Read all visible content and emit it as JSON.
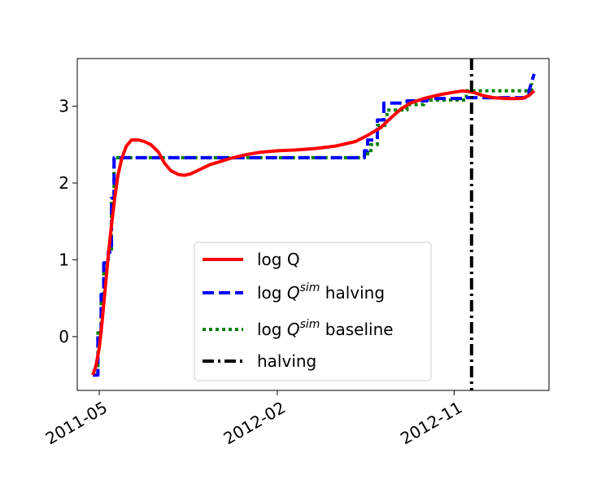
{
  "chart_data": {
    "type": "line",
    "title": "",
    "xlabel": "",
    "ylabel": "",
    "x_range": [
      "2011-03-28",
      "2013-03-28"
    ],
    "ylim": [
      -0.7,
      3.62
    ],
    "x_ticks": [
      {
        "date": "2011-05-01",
        "label": "2011-05"
      },
      {
        "date": "2012-02-01",
        "label": "2012-02"
      },
      {
        "date": "2012-11-01",
        "label": "2012-11"
      }
    ],
    "y_ticks": [
      0,
      1,
      2,
      3
    ],
    "y_tick_labels": [
      "0",
      "1",
      "2",
      "3"
    ],
    "legend": {
      "placement": "lower-center",
      "entries": [
        {
          "label": "log Q",
          "series": "logq"
        },
        {
          "label_prefix": "log ",
          "label_main": "Q",
          "label_sup": "sim",
          "label_suffix": " halving",
          "series": "halving_sim"
        },
        {
          "label_prefix": "log ",
          "label_main": "Q",
          "label_sup": "sim",
          "label_suffix": " baseline",
          "series": "baseline_sim"
        },
        {
          "label": "halving",
          "series": "halving_event"
        }
      ]
    },
    "series": [
      {
        "key": "logq",
        "color": "#ff0000",
        "style": "solid",
        "points": [
          [
            "2011-04-21",
            -0.5
          ],
          [
            "2011-04-26",
            -0.38
          ],
          [
            "2011-05-01",
            -0.15
          ],
          [
            "2011-05-05",
            0.15
          ],
          [
            "2011-05-10",
            0.6
          ],
          [
            "2011-05-15",
            1.05
          ],
          [
            "2011-05-20",
            1.45
          ],
          [
            "2011-05-25",
            1.8
          ],
          [
            "2011-05-30",
            2.1
          ],
          [
            "2011-06-05",
            2.32
          ],
          [
            "2011-06-12",
            2.48
          ],
          [
            "2011-06-20",
            2.56
          ],
          [
            "2011-07-01",
            2.56
          ],
          [
            "2011-07-10",
            2.54
          ],
          [
            "2011-07-20",
            2.5
          ],
          [
            "2011-08-01",
            2.4
          ],
          [
            "2011-08-10",
            2.26
          ],
          [
            "2011-08-20",
            2.16
          ],
          [
            "2011-09-01",
            2.11
          ],
          [
            "2011-09-10",
            2.1
          ],
          [
            "2011-09-20",
            2.12
          ],
          [
            "2011-10-05",
            2.18
          ],
          [
            "2011-10-20",
            2.24
          ],
          [
            "2011-11-05",
            2.28
          ],
          [
            "2011-11-20",
            2.32
          ],
          [
            "2011-12-15",
            2.37
          ],
          [
            "2012-01-05",
            2.4
          ],
          [
            "2012-02-01",
            2.42
          ],
          [
            "2012-03-01",
            2.43
          ],
          [
            "2012-04-01",
            2.45
          ],
          [
            "2012-05-01",
            2.48
          ],
          [
            "2012-06-01",
            2.54
          ],
          [
            "2012-06-20",
            2.62
          ],
          [
            "2012-07-10",
            2.72
          ],
          [
            "2012-07-25",
            2.84
          ],
          [
            "2012-08-10",
            2.96
          ],
          [
            "2012-08-25",
            3.04
          ],
          [
            "2012-09-15",
            3.1
          ],
          [
            "2012-10-10",
            3.15
          ],
          [
            "2012-10-30",
            3.18
          ],
          [
            "2012-11-15",
            3.2
          ],
          [
            "2012-12-01",
            3.18
          ],
          [
            "2012-12-15",
            3.14
          ],
          [
            "2013-01-01",
            3.11
          ],
          [
            "2013-01-20",
            3.1
          ],
          [
            "2013-02-15",
            3.1
          ],
          [
            "2013-02-25",
            3.14
          ],
          [
            "2013-03-05",
            3.2
          ]
        ]
      },
      {
        "key": "halving_sim",
        "color": "#0000ff",
        "style": "dashed",
        "points": [
          [
            "2011-04-21",
            -0.5
          ],
          [
            "2011-04-29",
            -0.5
          ],
          [
            "2011-04-29",
            0.05
          ],
          [
            "2011-05-04",
            0.05
          ],
          [
            "2011-05-04",
            0.55
          ],
          [
            "2011-05-08",
            0.55
          ],
          [
            "2011-05-08",
            0.96
          ],
          [
            "2011-05-15",
            0.96
          ],
          [
            "2011-05-15",
            1.1
          ],
          [
            "2011-05-20",
            1.1
          ],
          [
            "2011-05-20",
            1.8
          ],
          [
            "2011-05-24",
            1.8
          ],
          [
            "2011-05-24",
            2.33
          ],
          [
            "2012-06-15",
            2.33
          ],
          [
            "2012-06-15",
            2.42
          ],
          [
            "2012-06-20",
            2.42
          ],
          [
            "2012-06-20",
            2.56
          ],
          [
            "2012-07-05",
            2.56
          ],
          [
            "2012-07-05",
            2.82
          ],
          [
            "2012-07-15",
            2.82
          ],
          [
            "2012-07-15",
            3.04
          ],
          [
            "2012-08-20",
            3.04
          ],
          [
            "2012-08-20",
            3.07
          ],
          [
            "2012-09-20",
            3.07
          ],
          [
            "2012-09-20",
            3.1
          ],
          [
            "2012-11-15",
            3.1
          ],
          [
            "2012-11-15",
            3.11
          ],
          [
            "2013-02-25",
            3.11
          ],
          [
            "2013-02-25",
            3.2
          ],
          [
            "2013-03-05",
            3.42
          ]
        ]
      },
      {
        "key": "baseline_sim",
        "color": "#008000",
        "style": "dotted",
        "points": [
          [
            "2011-04-21",
            -0.5
          ],
          [
            "2011-04-29",
            -0.5
          ],
          [
            "2011-04-29",
            0.05
          ],
          [
            "2011-05-04",
            0.05
          ],
          [
            "2011-05-04",
            0.55
          ],
          [
            "2011-05-08",
            0.55
          ],
          [
            "2011-05-08",
            0.96
          ],
          [
            "2011-05-15",
            0.96
          ],
          [
            "2011-05-15",
            1.1
          ],
          [
            "2011-05-20",
            1.1
          ],
          [
            "2011-05-20",
            1.8
          ],
          [
            "2011-05-24",
            1.8
          ],
          [
            "2011-05-24",
            2.33
          ],
          [
            "2012-06-15",
            2.33
          ],
          [
            "2012-06-15",
            2.38
          ],
          [
            "2012-06-25",
            2.38
          ],
          [
            "2012-06-25",
            2.5
          ],
          [
            "2012-07-05",
            2.5
          ],
          [
            "2012-07-05",
            2.75
          ],
          [
            "2012-07-20",
            2.75
          ],
          [
            "2012-07-20",
            2.95
          ],
          [
            "2012-08-20",
            2.95
          ],
          [
            "2012-08-20",
            3.02
          ],
          [
            "2012-09-15",
            3.02
          ],
          [
            "2012-09-15",
            3.08
          ],
          [
            "2012-11-20",
            3.08
          ],
          [
            "2012-11-20",
            3.2
          ],
          [
            "2013-03-01",
            3.2
          ],
          [
            "2013-03-01",
            3.3
          ]
        ]
      }
    ],
    "vertical_lines": [
      {
        "key": "halving_event",
        "date": "2012-11-28",
        "color": "#000000",
        "style": "dashdot"
      }
    ],
    "grid": false
  }
}
